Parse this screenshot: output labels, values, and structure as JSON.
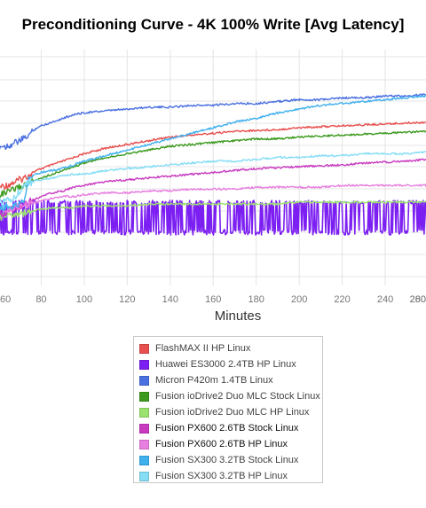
{
  "chart_data": {
    "type": "line",
    "title": "Preconditioning Curve - 4K 100% Write [Avg Latency]",
    "xlabel": "Minutes",
    "ylabel": "",
    "xlim": [
      60,
      282
    ],
    "ylim": [
      0,
      1
    ],
    "x_ticks": [
      "60",
      "80",
      "100",
      "120",
      "140",
      "160",
      "180",
      "200",
      "220",
      "240",
      "260",
      "280"
    ],
    "grid": true,
    "legend_position": "bottom",
    "x": [
      60,
      62,
      64,
      66,
      68,
      70,
      72,
      74,
      76,
      78,
      80,
      85,
      90,
      95,
      100,
      110,
      120,
      130,
      140,
      150,
      160,
      170,
      180,
      190,
      200,
      210,
      220,
      230,
      240,
      250,
      260,
      270,
      280
    ],
    "series": [
      {
        "name": "FlashMAX II HP Linux",
        "color": "#e8504f",
        "values": [
          0.28,
          0.285,
          0.29,
          0.3,
          0.31,
          0.32,
          0.33,
          0.345,
          0.36,
          0.37,
          0.38,
          0.4,
          0.42,
          0.44,
          0.46,
          0.49,
          0.51,
          0.53,
          0.55,
          0.56,
          0.57,
          0.58,
          0.585,
          0.59,
          0.6,
          0.605,
          0.61,
          0.615,
          0.62,
          0.625,
          0.63,
          0.632,
          0.635
        ]
      },
      {
        "name": "Huawei ES3000 2.4TB HP Linux",
        "color": "#7c1ff2",
        "values": [
          0.0,
          0.0,
          0.0,
          0.0,
          0.0,
          0.0,
          0.0,
          0.0,
          0.0,
          0.0,
          0.0,
          0.0,
          0.0,
          0.0,
          0.0,
          0.0,
          0.0,
          0.0,
          0.0,
          0.0,
          0.0,
          0.0,
          0.0,
          0.0,
          0.0,
          0.0,
          0.0,
          0.0,
          0.0,
          0.0,
          0.0,
          0.0,
          0.0
        ]
      },
      {
        "name": "Micron P420m 1.4TB Linux",
        "color": "#4a6fe0",
        "values": [
          0.5,
          0.5,
          0.5,
          0.51,
          0.52,
          0.53,
          0.54,
          0.56,
          0.58,
          0.6,
          0.61,
          0.63,
          0.65,
          0.67,
          0.68,
          0.69,
          0.7,
          0.71,
          0.71,
          0.72,
          0.72,
          0.73,
          0.73,
          0.74,
          0.75,
          0.75,
          0.76,
          0.76,
          0.77,
          0.77,
          0.78,
          0.78,
          0.79
        ]
      },
      {
        "name": "Fusion ioDrive2 Duo MLC Stock Linux",
        "color": "#3c9a1e",
        "values": [
          0.24,
          0.245,
          0.25,
          0.26,
          0.27,
          0.28,
          0.29,
          0.3,
          0.31,
          0.32,
          0.33,
          0.35,
          0.37,
          0.39,
          0.41,
          0.44,
          0.46,
          0.48,
          0.5,
          0.51,
          0.52,
          0.53,
          0.54,
          0.54,
          0.55,
          0.555,
          0.56,
          0.565,
          0.57,
          0.575,
          0.58,
          0.585,
          0.59
        ]
      },
      {
        "name": "Fusion ioDrive2 Duo MLC HP Linux",
        "color": "#9ce26e",
        "values": [
          0.12,
          0.12,
          0.13,
          0.13,
          0.14,
          0.14,
          0.14,
          0.15,
          0.15,
          0.16,
          0.16,
          0.17,
          0.17,
          0.17,
          0.18,
          0.18,
          0.18,
          0.19,
          0.19,
          0.19,
          0.19,
          0.19,
          0.19,
          0.19,
          0.2,
          0.2,
          0.2,
          0.2,
          0.2,
          0.2,
          0.2,
          0.2,
          0.2
        ]
      },
      {
        "name": "Fusion PX600 2.6TB Stock Linux",
        "color": "#c83ac0",
        "values": [
          0.14,
          0.14,
          0.15,
          0.16,
          0.17,
          0.18,
          0.19,
          0.2,
          0.21,
          0.22,
          0.23,
          0.25,
          0.26,
          0.28,
          0.29,
          0.31,
          0.32,
          0.33,
          0.34,
          0.35,
          0.36,
          0.37,
          0.38,
          0.385,
          0.39,
          0.395,
          0.4,
          0.41,
          0.415,
          0.42,
          0.43,
          0.435,
          0.44
        ]
      },
      {
        "name": "Fusion PX600 2.6TB HP Linux",
        "color": "#e77ee0",
        "values": [
          0.16,
          0.16,
          0.16,
          0.17,
          0.17,
          0.18,
          0.18,
          0.19,
          0.2,
          0.2,
          0.21,
          0.22,
          0.23,
          0.23,
          0.24,
          0.25,
          0.25,
          0.26,
          0.26,
          0.27,
          0.27,
          0.27,
          0.28,
          0.28,
          0.28,
          0.28,
          0.29,
          0.29,
          0.29,
          0.29,
          0.29,
          0.3,
          0.3
        ]
      },
      {
        "name": "Fusion SX300 3.2TB Stock Linux",
        "color": "#3fb0ee",
        "values": [
          0.17,
          0.17,
          0.18,
          0.18,
          0.18,
          0.19,
          0.2,
          0.32,
          0.34,
          0.35,
          0.36,
          0.37,
          0.38,
          0.4,
          0.42,
          0.45,
          0.48,
          0.51,
          0.54,
          0.57,
          0.6,
          0.63,
          0.65,
          0.68,
          0.7,
          0.72,
          0.73,
          0.74,
          0.75,
          0.76,
          0.77,
          0.78,
          0.79
        ]
      },
      {
        "name": "Fusion SX300 3.2TB HP Linux",
        "color": "#86ddf6",
        "values": [
          0.2,
          0.2,
          0.21,
          0.22,
          0.23,
          0.26,
          0.29,
          0.3,
          0.31,
          0.32,
          0.32,
          0.33,
          0.34,
          0.35,
          0.35,
          0.37,
          0.38,
          0.39,
          0.4,
          0.41,
          0.42,
          0.42,
          0.43,
          0.44,
          0.44,
          0.45,
          0.45,
          0.46,
          0.46,
          0.46,
          0.47,
          0.47,
          0.47
        ]
      }
    ]
  }
}
